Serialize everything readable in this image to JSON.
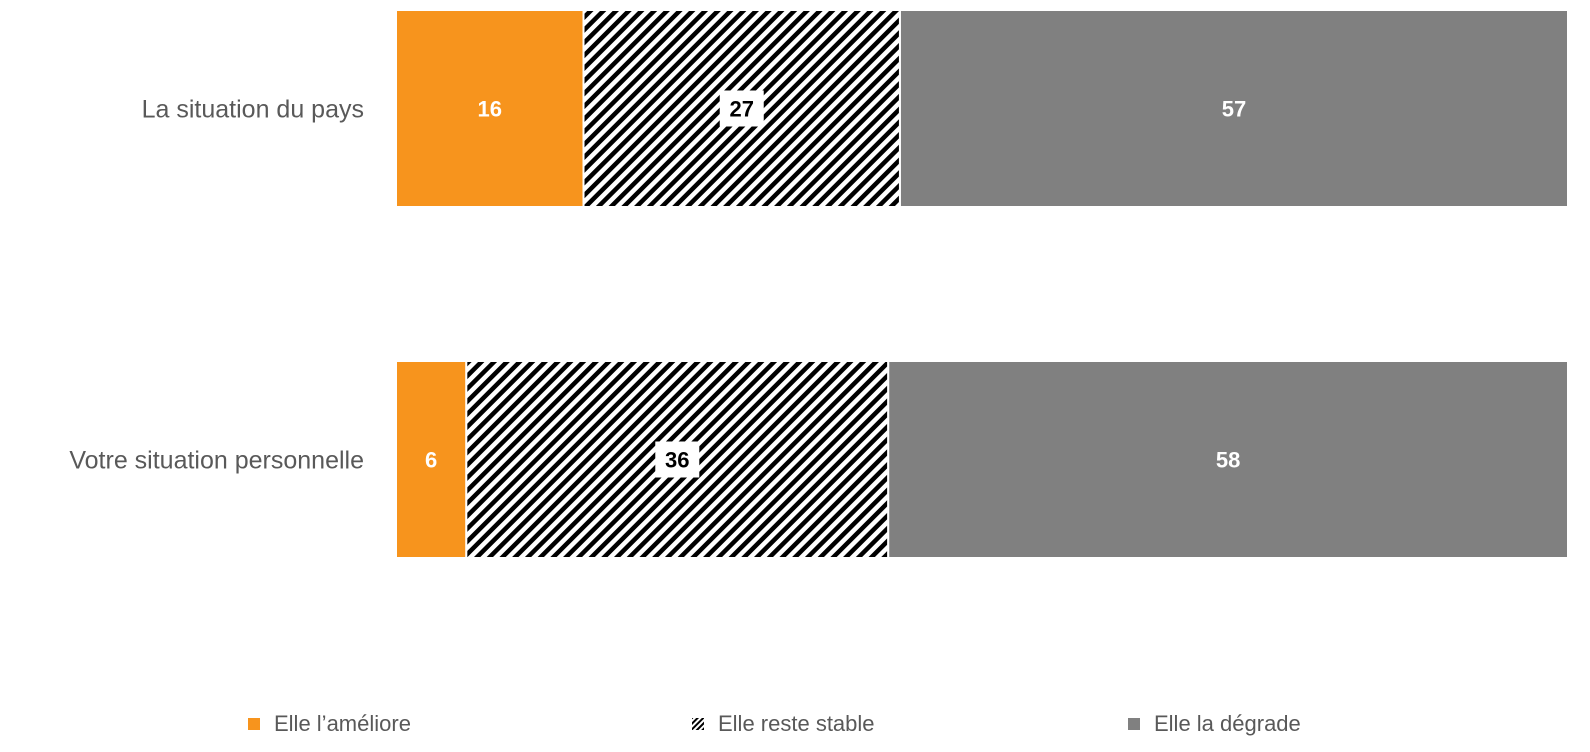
{
  "chart_data": {
    "type": "bar",
    "orientation": "horizontal",
    "stacked": true,
    "categories": [
      "La situation du pays",
      "Votre situation personnelle"
    ],
    "series": [
      {
        "name": "Elle l’améliore",
        "values": [
          16,
          6
        ],
        "color": "#F7941D",
        "fill": "solid",
        "label_color": "#FFFFFF"
      },
      {
        "name": "Elle reste stable",
        "values": [
          27,
          36
        ],
        "color": "#000000",
        "fill": "diagonal-hatch",
        "label_color": "#000000"
      },
      {
        "name": "Elle la dégrade",
        "values": [
          57,
          58
        ],
        "color": "#808080",
        "fill": "solid",
        "label_color": "#FFFFFF"
      }
    ],
    "xlim": [
      0,
      100
    ],
    "grid": false,
    "legend_position": "bottom",
    "title": "",
    "xlabel": "",
    "ylabel": ""
  }
}
